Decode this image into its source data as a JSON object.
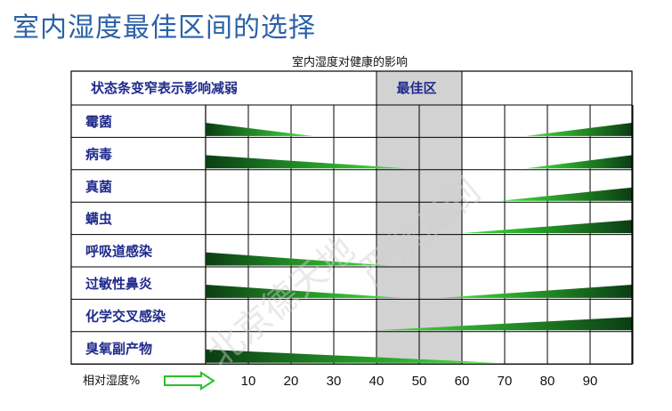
{
  "page": {
    "title": "室内湿度最佳区间的选择"
  },
  "chart_data": {
    "type": "bar",
    "title": "室内湿度对健康的影响",
    "header_label": "状态条变窄表示影响减弱",
    "best_zone_label": "最佳区",
    "best_zone": [
      40,
      60
    ],
    "xlabel": "相对湿度%",
    "xlim": [
      0,
      100
    ],
    "xticks": [
      10,
      20,
      30,
      40,
      50,
      60,
      70,
      80,
      90
    ],
    "gridlines": [
      0,
      10,
      20,
      30,
      40,
      50,
      60,
      70,
      80,
      90,
      100
    ],
    "categories": [
      "霉菌",
      "病毒",
      "真菌",
      "螨虫",
      "呼吸道感染",
      "过敏性鼻炎",
      "化学交叉感染",
      "臭氧副产物"
    ],
    "series": [
      {
        "low_end": 25,
        "high_start": 75
      },
      {
        "low_end": 47,
        "high_start": 75
      },
      {
        "low_end": null,
        "high_start": 69
      },
      {
        "low_end": null,
        "high_start": 60
      },
      {
        "low_end": 43,
        "high_start": null
      },
      {
        "low_end": 46,
        "high_start": 55
      },
      {
        "low_end": null,
        "high_start": 40
      },
      {
        "low_end": 68,
        "high_start": null
      }
    ],
    "colors": {
      "dark": "#0b3d14",
      "light": "#3ee63a",
      "zone": "#d2d2d2",
      "label": "#1f2a8c",
      "title": "#2a62a8"
    }
  }
}
